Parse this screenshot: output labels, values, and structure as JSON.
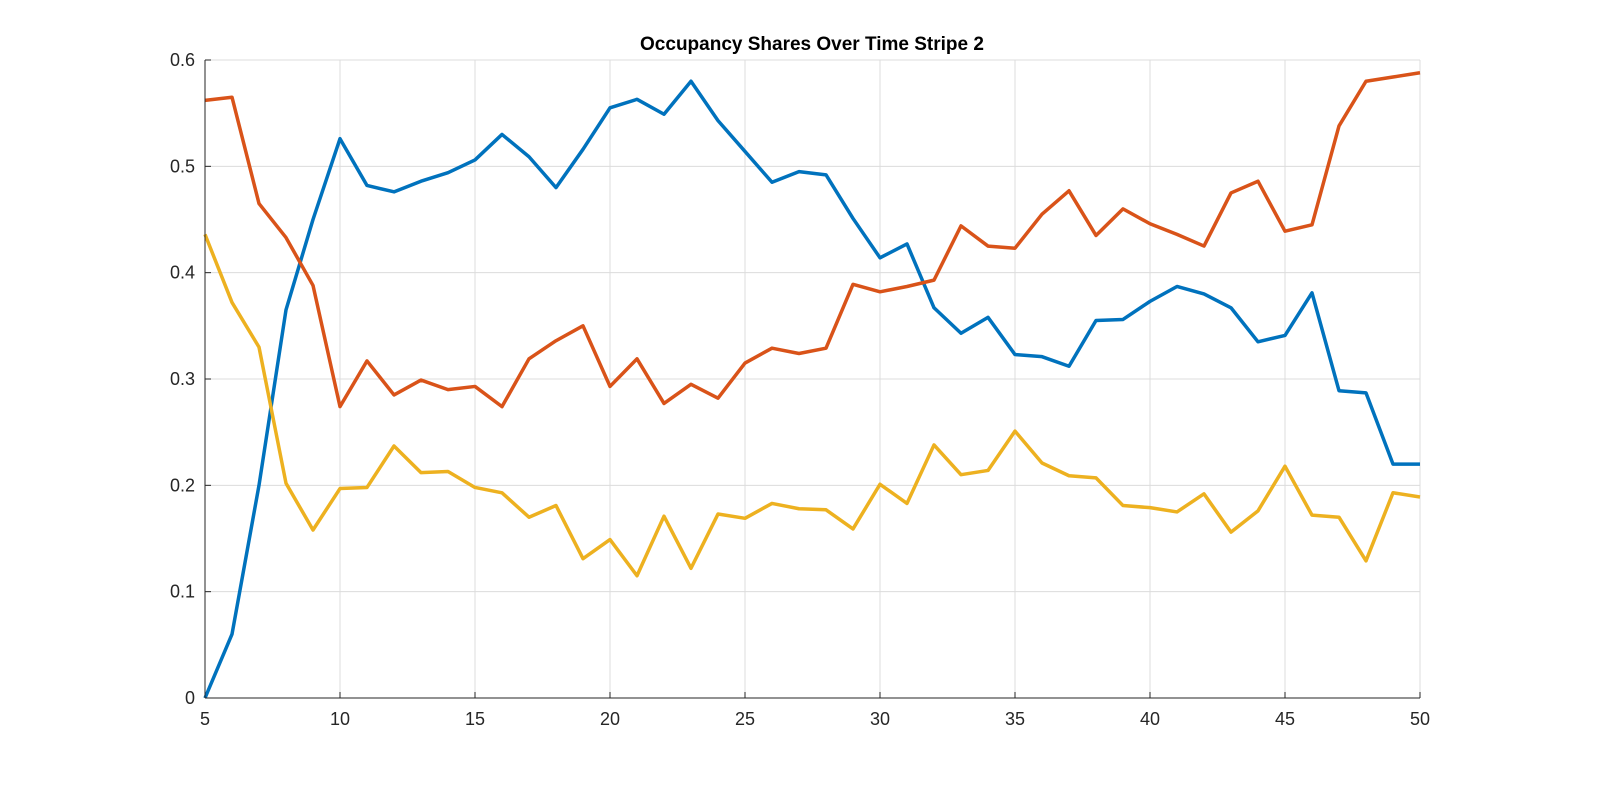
{
  "chart_data": {
    "type": "line",
    "title": "Occupancy Shares Over Time Stripe 2",
    "xlabel": "",
    "ylabel": "",
    "xlim": [
      5,
      50
    ],
    "ylim": [
      0,
      0.6
    ],
    "xticks": [
      "5",
      "10",
      "15",
      "20",
      "25",
      "30",
      "35",
      "40",
      "45",
      "50"
    ],
    "yticks": [
      "0",
      "0.1",
      "0.2",
      "0.3",
      "0.4",
      "0.5",
      "0.6"
    ],
    "grid": true,
    "legend": "none",
    "x": [
      5,
      6,
      7,
      8,
      9,
      10,
      11,
      12,
      13,
      14,
      15,
      16,
      17,
      18,
      19,
      20,
      21,
      22,
      23,
      24,
      25,
      26,
      27,
      28,
      29,
      30,
      31,
      32,
      33,
      34,
      35,
      36,
      37,
      38,
      39,
      40,
      41,
      42,
      43,
      44,
      45,
      46,
      47,
      48,
      49,
      50
    ],
    "series": [
      {
        "color": "#0072BD",
        "values": [
          0.0,
          0.06,
          0.2,
          0.365,
          0.45,
          0.526,
          0.482,
          0.476,
          0.486,
          0.494,
          0.506,
          0.53,
          0.509,
          0.48,
          0.516,
          0.555,
          0.563,
          0.549,
          0.58,
          0.543,
          0.514,
          0.485,
          0.495,
          0.492,
          0.451,
          0.414,
          0.427,
          0.367,
          0.343,
          0.358,
          0.323,
          0.321,
          0.312,
          0.355,
          0.356,
          0.373,
          0.387,
          0.38,
          0.367,
          0.335,
          0.341,
          0.381,
          0.289,
          0.287,
          0.22,
          0.22
        ]
      },
      {
        "color": "#D95319",
        "values": [
          0.562,
          0.565,
          0.465,
          0.433,
          0.388,
          0.274,
          0.317,
          0.285,
          0.299,
          0.29,
          0.293,
          0.274,
          0.319,
          0.336,
          0.35,
          0.293,
          0.319,
          0.277,
          0.295,
          0.282,
          0.315,
          0.329,
          0.324,
          0.329,
          0.389,
          0.382,
          0.387,
          0.393,
          0.444,
          0.425,
          0.423,
          0.455,
          0.477,
          0.435,
          0.46,
          0.446,
          0.436,
          0.425,
          0.475,
          0.486,
          0.439,
          0.445,
          0.538,
          0.58,
          0.584,
          0.588
        ]
      },
      {
        "color": "#EDB120",
        "values": [
          0.436,
          0.372,
          0.33,
          0.202,
          0.158,
          0.197,
          0.198,
          0.237,
          0.212,
          0.213,
          0.198,
          0.193,
          0.17,
          0.181,
          0.131,
          0.149,
          0.115,
          0.171,
          0.122,
          0.173,
          0.169,
          0.183,
          0.178,
          0.177,
          0.159,
          0.201,
          0.183,
          0.238,
          0.21,
          0.214,
          0.251,
          0.221,
          0.209,
          0.207,
          0.181,
          0.179,
          0.175,
          0.192,
          0.156,
          0.176,
          0.218,
          0.172,
          0.17,
          0.129,
          0.193,
          0.189
        ]
      }
    ]
  }
}
